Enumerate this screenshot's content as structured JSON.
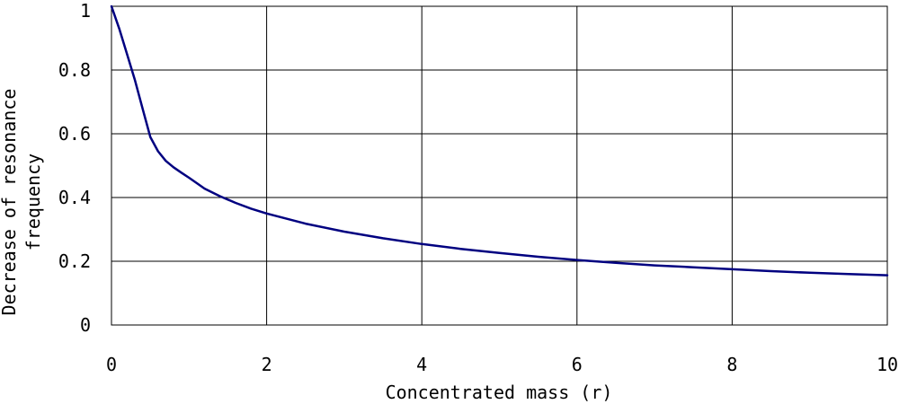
{
  "chart_data": {
    "type": "line",
    "title": "",
    "xlabel": "Concentrated mass (r)",
    "ylabel_lines": [
      "Decrease of resonance",
      "frequency"
    ],
    "xlim": [
      0,
      10
    ],
    "ylim": [
      0,
      1
    ],
    "grid": true,
    "legend": "none",
    "x_ticks": [
      "0",
      "2",
      "4",
      "6",
      "8",
      "10"
    ],
    "y_ticks": [
      "0",
      "0.2",
      "0.4",
      "0.6",
      "0.8",
      "1"
    ],
    "series": [
      {
        "color": "#000080",
        "points": [
          [
            0,
            1.0
          ],
          [
            0.1,
            0.93
          ],
          [
            0.2,
            0.85
          ],
          [
            0.3,
            0.77
          ],
          [
            0.4,
            0.68
          ],
          [
            0.5,
            0.59
          ],
          [
            0.6,
            0.545
          ],
          [
            0.7,
            0.515
          ],
          [
            0.8,
            0.495
          ],
          [
            0.9,
            0.478
          ],
          [
            1.0,
            0.462
          ],
          [
            1.1,
            0.445
          ],
          [
            1.2,
            0.428
          ],
          [
            1.4,
            0.404
          ],
          [
            1.6,
            0.383
          ],
          [
            1.8,
            0.365
          ],
          [
            2.0,
            0.35
          ],
          [
            2.5,
            0.318
          ],
          [
            3.0,
            0.293
          ],
          [
            3.5,
            0.272
          ],
          [
            4.0,
            0.254
          ],
          [
            4.5,
            0.239
          ],
          [
            5.0,
            0.226
          ],
          [
            5.5,
            0.214
          ],
          [
            6.0,
            0.204
          ],
          [
            6.5,
            0.195
          ],
          [
            7.0,
            0.187
          ],
          [
            7.5,
            0.181
          ],
          [
            8.0,
            0.175
          ],
          [
            8.5,
            0.169
          ],
          [
            9.0,
            0.164
          ],
          [
            9.5,
            0.16
          ],
          [
            10.0,
            0.156
          ]
        ]
      }
    ]
  }
}
